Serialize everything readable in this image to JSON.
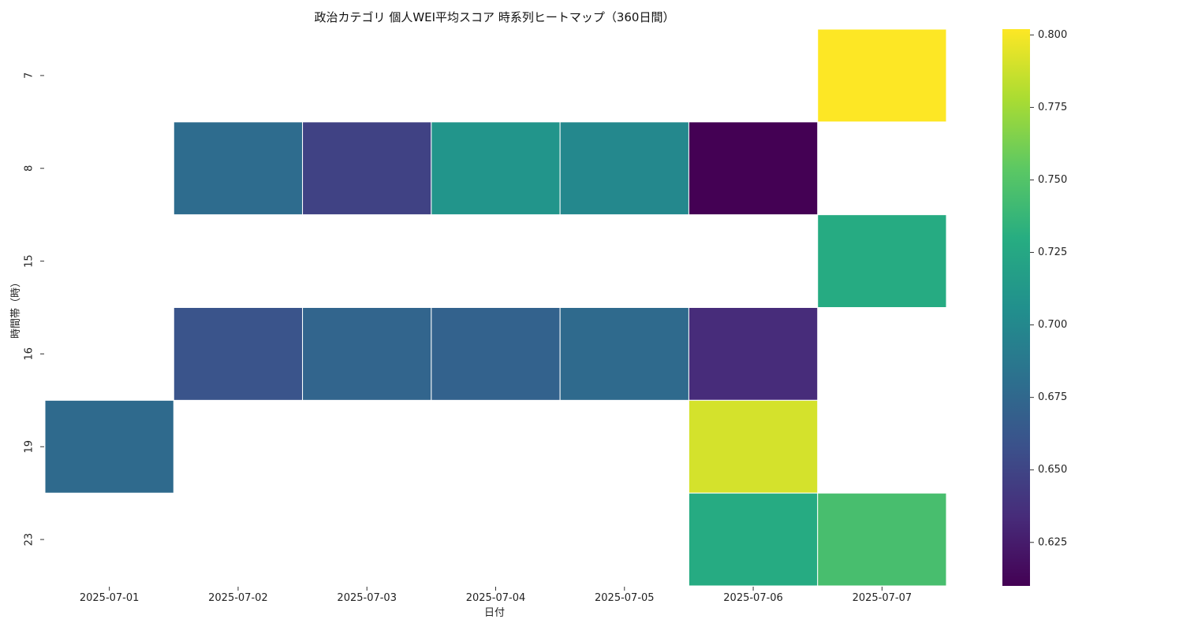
{
  "chart_data": {
    "type": "heatmap",
    "title": "政治カテゴリ 個人WEI平均スコア 時系列ヒートマップ（360日間）",
    "xlabel": "日付",
    "ylabel": "時間帯（時）",
    "x_categories": [
      "2025-07-01",
      "2025-07-02",
      "2025-07-03",
      "2025-07-04",
      "2025-07-05",
      "2025-07-06",
      "2025-07-07"
    ],
    "y_categories": [
      "7",
      "8",
      "15",
      "16",
      "19",
      "23"
    ],
    "values": [
      [
        null,
        null,
        null,
        null,
        null,
        null,
        0.802
      ],
      [
        null,
        0.678,
        0.648,
        0.71,
        0.7,
        0.61,
        null
      ],
      [
        null,
        null,
        null,
        null,
        null,
        null,
        0.728
      ],
      [
        null,
        0.66,
        0.673,
        0.671,
        0.677,
        0.634,
        null
      ],
      [
        0.677,
        null,
        null,
        null,
        null,
        0.79,
        null
      ],
      [
        null,
        null,
        null,
        null,
        null,
        0.728,
        0.745
      ]
    ],
    "colorscale": "viridis",
    "colorbar": {
      "min": 0.61,
      "max": 0.802,
      "ticks": [
        "0.625",
        "0.650",
        "0.675",
        "0.700",
        "0.725",
        "0.750",
        "0.775",
        "0.800"
      ]
    },
    "grid": false,
    "cell_border_color": "#ffffff"
  }
}
